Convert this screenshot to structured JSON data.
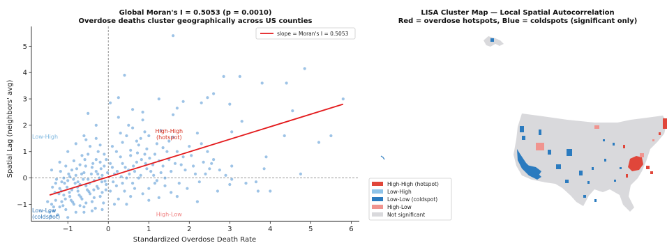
{
  "chart_data": [
    {
      "type": "scatter",
      "title": "Global Moran's I = 0.5053  (p = 0.0010)",
      "subtitle": "Overdose deaths cluster geographically across US counties",
      "xlabel": "Standardized Overdose Death Rate",
      "ylabel": "Spatial Lag (neighbors' avg)",
      "xlim": [
        -1.9,
        6.2
      ],
      "ylim": [
        -1.65,
        5.75
      ],
      "xticks": [
        -1,
        0,
        1,
        2,
        3,
        4,
        5,
        6
      ],
      "yticks": [
        -1,
        0,
        1,
        2,
        3,
        4,
        5
      ],
      "xtick_labels": [
        "−1",
        "0",
        "1",
        "2",
        "3",
        "4",
        "5",
        "6"
      ],
      "ytick_labels": [
        "−1",
        "0",
        "1",
        "2",
        "3",
        "4",
        "5"
      ],
      "grid": false,
      "reference_lines": {
        "x": 0,
        "y": 0,
        "style": "dashed",
        "color": "#888888"
      },
      "point_color": "#5b9bd5",
      "regression": {
        "label": "slope = Moran's I = 0.5053",
        "color": "#e31a1c",
        "x": [
          -1.45,
          5.8
        ],
        "y": [
          -0.65,
          2.8
        ]
      },
      "legend_position": "top-right",
      "quadrant_labels": [
        {
          "text": "High-High",
          "text2": "(hotspot)",
          "color": "#d7301f",
          "x": 1.5,
          "y": 1.7
        },
        {
          "text": "Low-High",
          "text2": "",
          "color": "#7fb8e0",
          "x": -1.5,
          "y": 1.5
        },
        {
          "text": "Low-Low",
          "text2": "(coldspot)",
          "color": "#2b72b5",
          "x": -1.5,
          "y": -1.3
        },
        {
          "text": "High-Low",
          "text2": "",
          "color": "#f08080",
          "x": 1.5,
          "y": -1.45
        }
      ],
      "points": [
        [
          1.6,
          5.4
        ],
        [
          0.4,
          3.9
        ],
        [
          4.85,
          4.15
        ],
        [
          2.85,
          3.85
        ],
        [
          3.25,
          3.85
        ],
        [
          3.8,
          3.6
        ],
        [
          4.4,
          3.6
        ],
        [
          4.55,
          2.55
        ],
        [
          5.8,
          3.0
        ],
        [
          5.5,
          1.6
        ],
        [
          4.35,
          1.6
        ],
        [
          5.2,
          1.35
        ],
        [
          2.6,
          3.2
        ],
        [
          2.45,
          3.05
        ],
        [
          0.25,
          3.05
        ],
        [
          1.25,
          3.0
        ],
        [
          1.85,
          2.9
        ],
        [
          2.3,
          2.85
        ],
        [
          1.7,
          2.65
        ],
        [
          3.0,
          2.8
        ],
        [
          0.6,
          2.6
        ],
        [
          0.85,
          2.5
        ],
        [
          1.6,
          2.4
        ],
        [
          -0.5,
          2.45
        ],
        [
          0.05,
          2.85
        ],
        [
          0.85,
          2.2
        ],
        [
          3.05,
          1.75
        ],
        [
          1.3,
          1.8
        ],
        [
          2.2,
          1.7
        ],
        [
          3.3,
          2.15
        ],
        [
          2.45,
          1.0
        ],
        [
          3.9,
          0.8
        ],
        [
          4.75,
          0.15
        ],
        [
          3.85,
          0.35
        ],
        [
          3.05,
          0.45
        ],
        [
          2.9,
          0.1
        ],
        [
          2.4,
          0.15
        ],
        [
          3.0,
          -0.25
        ],
        [
          3.65,
          -0.15
        ],
        [
          2.7,
          -0.5
        ],
        [
          3.4,
          -0.2
        ],
        [
          3.7,
          -0.5
        ],
        [
          4.0,
          -0.5
        ],
        [
          1.95,
          -0.4
        ],
        [
          1.0,
          -0.85
        ],
        [
          1.7,
          -0.7
        ],
        [
          2.2,
          -0.9
        ],
        [
          3.05,
          -0.05
        ],
        [
          2.6,
          0.7
        ],
        [
          2.0,
          1.2
        ],
        [
          1.5,
          1.4
        ],
        [
          0.8,
          1.5
        ],
        [
          0.3,
          1.7
        ],
        [
          -0.3,
          1.5
        ],
        [
          0.1,
          0.4
        ],
        [
          0.3,
          0.8
        ],
        [
          0.5,
          0.3
        ],
        [
          0.7,
          0.6
        ],
        [
          0.9,
          0.9
        ],
        [
          1.1,
          0.5
        ],
        [
          1.3,
          0.2
        ],
        [
          1.5,
          0.7
        ],
        [
          1.7,
          1.0
        ],
        [
          1.9,
          0.3
        ],
        [
          0.2,
          -0.3
        ],
        [
          0.4,
          -0.5
        ],
        [
          0.6,
          -0.2
        ],
        [
          0.8,
          0.1
        ],
        [
          1.0,
          -0.4
        ],
        [
          1.2,
          -0.1
        ],
        [
          1.4,
          -0.3
        ],
        [
          0.15,
          0.15
        ],
        [
          0.35,
          0.55
        ],
        [
          0.55,
          1.05
        ],
        [
          0.75,
          1.25
        ],
        [
          0.95,
          1.1
        ],
        [
          1.15,
          0.9
        ],
        [
          1.35,
          1.15
        ],
        [
          0.45,
          0.0
        ],
        [
          0.65,
          0.25
        ],
        [
          0.85,
          -0.6
        ],
        [
          1.05,
          0.25
        ],
        [
          1.25,
          0.65
        ],
        [
          -0.1,
          0.9
        ],
        [
          -0.2,
          0.6
        ],
        [
          -0.4,
          0.4
        ],
        [
          -0.6,
          0.2
        ],
        [
          -0.8,
          0.1
        ],
        [
          -1.0,
          -0.1
        ],
        [
          -1.2,
          -0.4
        ],
        [
          -0.15,
          0.1
        ],
        [
          -0.35,
          -0.1
        ],
        [
          -0.55,
          -0.3
        ],
        [
          -0.75,
          -0.5
        ],
        [
          -0.95,
          -0.7
        ],
        [
          -1.15,
          -0.9
        ],
        [
          -1.35,
          -1.1
        ],
        [
          -0.25,
          -0.4
        ],
        [
          -0.45,
          -0.6
        ],
        [
          -0.65,
          -0.8
        ],
        [
          -0.85,
          -1.0
        ],
        [
          -1.05,
          -1.2
        ],
        [
          -1.25,
          -1.4
        ],
        [
          -0.05,
          -0.25
        ],
        [
          -0.3,
          0.25
        ],
        [
          -0.5,
          -0.05
        ],
        [
          -0.7,
          -0.25
        ],
        [
          -0.9,
          -0.45
        ],
        [
          -1.1,
          -0.65
        ],
        [
          -1.3,
          -0.85
        ],
        [
          -0.2,
          -0.7
        ],
        [
          -0.4,
          -0.9
        ],
        [
          -0.6,
          -1.1
        ],
        [
          -0.8,
          -1.3
        ],
        [
          -1.0,
          -1.5
        ],
        [
          -0.1,
          0.45
        ],
        [
          -0.3,
          0.7
        ],
        [
          -0.5,
          0.9
        ],
        [
          -0.7,
          0.5
        ],
        [
          -0.9,
          0.3
        ],
        [
          -1.1,
          0.0
        ],
        [
          -1.3,
          -0.2
        ],
        [
          -0.15,
          -0.55
        ],
        [
          -0.35,
          -0.75
        ],
        [
          -0.55,
          -0.95
        ],
        [
          -0.75,
          -0.15
        ],
        [
          -0.95,
          0.05
        ],
        [
          -1.15,
          -0.15
        ],
        [
          -0.05,
          0.7
        ],
        [
          -0.25,
          1.0
        ],
        [
          -0.45,
          1.2
        ],
        [
          -0.65,
          0.85
        ],
        [
          -0.85,
          0.65
        ],
        [
          -1.05,
          0.45
        ],
        [
          -0.12,
          -0.95
        ],
        [
          -0.32,
          -1.15
        ],
        [
          -0.52,
          -0.45
        ],
        [
          -0.72,
          -0.65
        ],
        [
          -0.92,
          -0.85
        ],
        [
          -1.12,
          -1.05
        ],
        [
          -1.32,
          -0.55
        ],
        [
          -0.02,
          0.2
        ],
        [
          -0.22,
          0.0
        ],
        [
          -0.42,
          0.15
        ],
        [
          -0.62,
          -0.05
        ],
        [
          -0.82,
          -0.2
        ],
        [
          -1.02,
          -0.35
        ],
        [
          -1.22,
          -0.6
        ],
        [
          -1.4,
          -1.0
        ],
        [
          -1.45,
          -1.3
        ],
        [
          -0.18,
          0.35
        ],
        [
          -0.38,
          0.55
        ],
        [
          -0.58,
          0.7
        ],
        [
          -0.78,
          0.35
        ],
        [
          -0.98,
          0.15
        ],
        [
          -1.18,
          0.25
        ],
        [
          -0.08,
          -0.12
        ],
        [
          -0.28,
          -0.32
        ],
        [
          -0.48,
          -0.52
        ],
        [
          -0.68,
          -0.72
        ],
        [
          -0.88,
          -0.92
        ],
        [
          -1.08,
          -0.2
        ],
        [
          0.05,
          -0.5
        ],
        [
          0.25,
          -0.8
        ],
        [
          0.45,
          -1.0
        ],
        [
          0.65,
          -0.4
        ],
        [
          0.1,
          1.2
        ],
        [
          0.2,
          1.0
        ],
        [
          0.6,
          1.9
        ],
        [
          1.0,
          1.6
        ],
        [
          1.4,
          0.0
        ],
        [
          1.8,
          0.5
        ],
        [
          2.1,
          0.45
        ],
        [
          2.3,
          1.3
        ],
        [
          1.6,
          1.55
        ],
        [
          1.2,
          1.3
        ],
        [
          0.9,
          1.75
        ],
        [
          0.5,
          2.0
        ],
        [
          0.35,
          1.35
        ],
        [
          0.55,
          0.85
        ],
        [
          0.75,
          0.0
        ],
        [
          0.95,
          0.35
        ],
        [
          1.15,
          -0.2
        ],
        [
          1.35,
          0.45
        ],
        [
          1.55,
          0.25
        ],
        [
          1.75,
          -0.2
        ],
        [
          2.05,
          0.85
        ],
        [
          2.35,
          0.6
        ],
        [
          2.5,
          0.35
        ],
        [
          -1.5,
          -0.9
        ],
        [
          -1.35,
          -1.25
        ],
        [
          -1.2,
          -1.1
        ],
        [
          -1.42,
          -1.45
        ],
        [
          -1.28,
          -0.05
        ],
        [
          -1.38,
          -0.35
        ],
        [
          -0.6,
          -1.3
        ],
        [
          -0.7,
          -1.05
        ],
        [
          -0.4,
          -1.25
        ],
        [
          -0.15,
          -1.2
        ],
        [
          0.15,
          -1.0
        ],
        [
          0.35,
          -0.2
        ],
        [
          0.55,
          -0.7
        ],
        [
          -0.3,
          2.0
        ],
        [
          -0.6,
          1.6
        ],
        [
          -0.2,
          1.25
        ],
        [
          -0.8,
          1.3
        ],
        [
          -1.0,
          1.0
        ],
        [
          -1.2,
          0.6
        ],
        [
          -1.4,
          0.3
        ],
        [
          -0.55,
          1.45
        ],
        [
          0.25,
          2.3
        ],
        [
          0.45,
          1.6
        ],
        [
          0.7,
          1.4
        ],
        [
          1.45,
          1.0
        ],
        [
          1.65,
          0.55
        ],
        [
          1.85,
          0.8
        ],
        [
          2.15,
          0.15
        ],
        [
          2.55,
          0.55
        ],
        [
          2.75,
          0.3
        ],
        [
          2.25,
          -0.15
        ],
        [
          1.55,
          -0.55
        ],
        [
          1.25,
          -0.75
        ],
        [
          0.05,
          0.55
        ],
        [
          0.12,
          -0.15
        ],
        [
          0.22,
          0.25
        ],
        [
          0.32,
          0.05
        ],
        [
          0.42,
          0.4
        ],
        [
          0.52,
          0.15
        ],
        [
          0.62,
          0.45
        ],
        [
          0.72,
          0.95
        ],
        [
          0.82,
          0.7
        ],
        [
          0.92,
          0.55
        ],
        [
          1.02,
          0.75
        ],
        [
          1.12,
          0.1
        ],
        [
          -0.06,
          -0.45
        ],
        [
          -0.16,
          -0.15
        ],
        [
          -0.26,
          0.15
        ],
        [
          -0.36,
          -0.45
        ],
        [
          -0.46,
          -0.2
        ],
        [
          -0.56,
          0.45
        ],
        [
          -0.66,
          0.15
        ],
        [
          -0.76,
          -0.35
        ],
        [
          -0.86,
          -0.05
        ],
        [
          -0.96,
          -0.55
        ],
        [
          -1.06,
          -0.8
        ],
        [
          -1.16,
          -0.5
        ]
      ]
    },
    {
      "type": "other",
      "title": "LISA Cluster Map — Local Spatial Autocorrelation",
      "subtitle": "Red = overdose hotspots, Blue = coldspots (significant only)",
      "legend_position": "lower-left",
      "legend": [
        {
          "label": "High-High (hotspot)",
          "color": "#e0463a"
        },
        {
          "label": "Low-High",
          "color": "#8ec3e8"
        },
        {
          "label": "Low-Low (coldspot)",
          "color": "#2b7bbf"
        },
        {
          "label": "High-Low",
          "color": "#f0948f"
        },
        {
          "label": "Not significant",
          "color": "#d9d9dc"
        }
      ]
    }
  ]
}
